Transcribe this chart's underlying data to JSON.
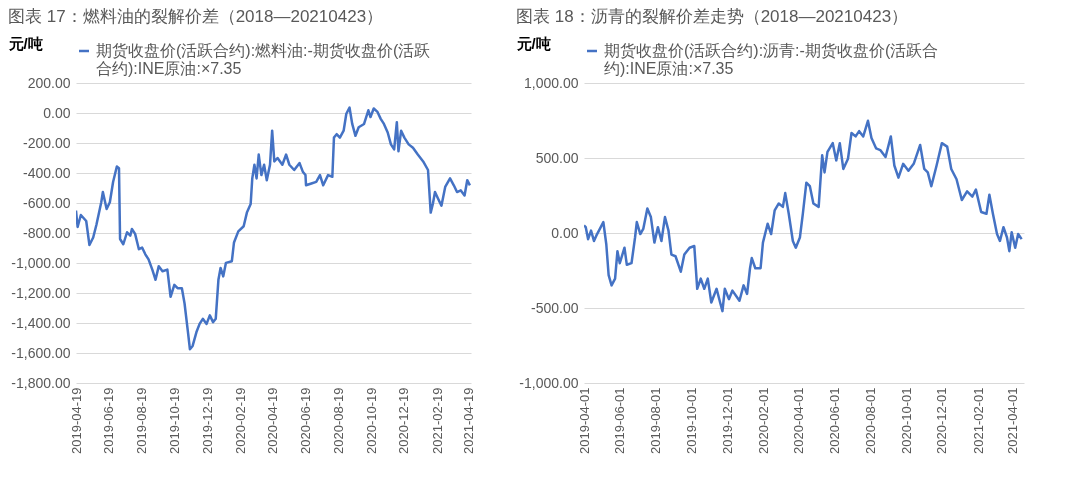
{
  "chart_data": [
    {
      "type": "line",
      "title": "图表 17：燃料油的裂解价差（2018—20210423）",
      "ylabel": "元/吨",
      "legend": "top",
      "grid": "y",
      "x": [
        "2019-04-19",
        "2019-04-22",
        "2019-04-28",
        "2019-05-08",
        "2019-05-14",
        "2019-05-21",
        "2019-05-27",
        "2019-06-05",
        "2019-06-08",
        "2019-06-15",
        "2019-06-21",
        "2019-06-27",
        "2019-07-04",
        "2019-07-08",
        "2019-07-10",
        "2019-07-16",
        "2019-07-23",
        "2019-07-29",
        "2019-08-01",
        "2019-08-07",
        "2019-08-14",
        "2019-08-20",
        "2019-08-26",
        "2019-09-01",
        "2019-09-08",
        "2019-09-14",
        "2019-09-20",
        "2019-09-27",
        "2019-10-06",
        "2019-10-12",
        "2019-10-19",
        "2019-10-25",
        "2019-11-02",
        "2019-11-07",
        "2019-11-13",
        "2019-11-17",
        "2019-11-22",
        "2019-11-29",
        "2019-12-05",
        "2019-12-11",
        "2019-12-18",
        "2019-12-24",
        "2019-12-30",
        "2020-01-04",
        "2020-01-09",
        "2020-01-13",
        "2020-01-18",
        "2020-01-23",
        "2020-02-03",
        "2020-02-07",
        "2020-02-15",
        "2020-02-25",
        "2020-03-02",
        "2020-03-09",
        "2020-03-12",
        "2020-03-16",
        "2020-03-20",
        "2020-03-24",
        "2020-03-29",
        "2020-04-03",
        "2020-04-08",
        "2020-04-14",
        "2020-04-18",
        "2020-04-22",
        "2020-04-28",
        "2020-05-07",
        "2020-05-14",
        "2020-05-20",
        "2020-05-29",
        "2020-06-08",
        "2020-06-14",
        "2020-06-19",
        "2020-06-20",
        "2020-06-30",
        "2020-07-09",
        "2020-07-16",
        "2020-07-22",
        "2020-07-31",
        "2020-08-08",
        "2020-08-11",
        "2020-08-16",
        "2020-08-22",
        "2020-08-29",
        "2020-09-03",
        "2020-09-09",
        "2020-09-14",
        "2020-09-20",
        "2020-09-26",
        "2020-10-06",
        "2020-10-14",
        "2020-10-18",
        "2020-10-24",
        "2020-10-31",
        "2020-11-06",
        "2020-11-12",
        "2020-11-19",
        "2020-11-25",
        "2020-12-01",
        "2020-12-06",
        "2020-12-09",
        "2020-12-14",
        "2020-12-20",
        "2020-12-28",
        "2021-01-05",
        "2021-01-14",
        "2021-01-24",
        "2021-02-02",
        "2021-02-07",
        "2021-02-11",
        "2021-02-15",
        "2021-02-21",
        "2021-02-27",
        "2021-03-06",
        "2021-03-15",
        "2021-03-22",
        "2021-03-28",
        "2021-04-04",
        "2021-04-11",
        "2021-04-16",
        "2021-04-21"
      ],
      "series": [
        {
          "name": "期货收盘价(活跃合约):燃料油:-期货收盘价(活跃合约):INE原油:×7.35",
          "color": "#4472c4",
          "values": [
            -650,
            -760,
            -680,
            -720,
            -880,
            -830,
            -745,
            -595,
            -527,
            -640,
            -595,
            -460,
            -357,
            -368,
            -840,
            -875,
            -795,
            -818,
            -773,
            -806,
            -908,
            -897,
            -942,
            -976,
            -1044,
            -1112,
            -1021,
            -1055,
            -1044,
            -1225,
            -1146,
            -1168,
            -1168,
            -1270,
            -1451,
            -1575,
            -1553,
            -1462,
            -1406,
            -1372,
            -1406,
            -1349,
            -1394,
            -1372,
            -1112,
            -1033,
            -1089,
            -999,
            -988,
            -863,
            -789,
            -755,
            -664,
            -607,
            -436,
            -345,
            -436,
            -277,
            -414,
            -345,
            -448,
            -345,
            -118,
            -323,
            -300,
            -345,
            -277,
            -345,
            -380,
            -334,
            -391,
            -414,
            -482,
            -470,
            -459,
            -414,
            -482,
            -414,
            -425,
            -164,
            -141,
            -164,
            -118,
            -5,
            36,
            -73,
            -152,
            -95,
            -73,
            18,
            -27,
            30,
            7,
            -39,
            -73,
            -130,
            -209,
            -243,
            -61,
            -255,
            -118,
            -164,
            -209,
            -232,
            -277,
            -323,
            -380,
            -664,
            -607,
            -527,
            -573,
            -618,
            -493,
            -436,
            -482,
            -527,
            -516,
            -550,
            -448,
            -482
          ]
        }
      ],
      "xlim": [
        "2019-04-19",
        "2021-04-23"
      ],
      "xticks": [
        "2019-04-19",
        "2019-06-19",
        "2019-08-19",
        "2019-10-19",
        "2019-12-19",
        "2020-02-19",
        "2020-04-19",
        "2020-06-19",
        "2020-08-19",
        "2020-10-19",
        "2020-12-19",
        "2021-02-19",
        "2021-04-19"
      ],
      "ylim": [
        -1800,
        200
      ],
      "yticks": [
        {
          "value": -1800,
          "label": "-1,800.00"
        },
        {
          "value": -1600,
          "label": "-1,600.00"
        },
        {
          "value": -1400,
          "label": "-1,400.00"
        },
        {
          "value": -1200,
          "label": "-1,200.00"
        },
        {
          "value": -1000,
          "label": "-1,000.00"
        },
        {
          "value": -800,
          "label": "-800.00"
        },
        {
          "value": -600,
          "label": "-600.00"
        },
        {
          "value": -400,
          "label": "-400.00"
        },
        {
          "value": -200,
          "label": "-200.00"
        },
        {
          "value": 0,
          "label": "0.00"
        },
        {
          "value": 200,
          "label": "200.00"
        }
      ]
    },
    {
      "type": "line",
      "title": "图表 18：沥青的裂解价差走势（2018—20210423）",
      "ylabel": "元/吨",
      "legend": "top",
      "grid": "y",
      "x": [
        "2019-04-01",
        "2019-04-04",
        "2019-04-08",
        "2019-04-13",
        "2019-04-18",
        "2019-04-22",
        "2019-04-28",
        "2019-05-04",
        "2019-05-09",
        "2019-05-13",
        "2019-05-18",
        "2019-05-24",
        "2019-05-28",
        "2019-06-01",
        "2019-06-09",
        "2019-06-13",
        "2019-06-21",
        "2019-06-27",
        "2019-06-30",
        "2019-07-06",
        "2019-07-11",
        "2019-07-18",
        "2019-07-24",
        "2019-07-30",
        "2019-08-05",
        "2019-08-11",
        "2019-08-17",
        "2019-08-23",
        "2019-08-28",
        "2019-09-04",
        "2019-09-13",
        "2019-09-19",
        "2019-09-28",
        "2019-10-06",
        "2019-10-11",
        "2019-10-17",
        "2019-10-23",
        "2019-10-29",
        "2019-11-04",
        "2019-11-13",
        "2019-11-19",
        "2019-11-23",
        "2019-11-27",
        "2019-12-04",
        "2019-12-10",
        "2019-12-22",
        "2019-12-29",
        "2020-01-04",
        "2020-01-09",
        "2020-01-12",
        "2020-01-18",
        "2020-01-27",
        "2020-01-31",
        "2020-02-08",
        "2020-02-14",
        "2020-02-20",
        "2020-02-27",
        "2020-03-05",
        "2020-03-09",
        "2020-03-15",
        "2020-03-22",
        "2020-03-27",
        "2020-04-03",
        "2020-04-08",
        "2020-04-14",
        "2020-04-20",
        "2020-04-26",
        "2020-05-05",
        "2020-05-11",
        "2020-05-15",
        "2020-05-20",
        "2020-05-29",
        "2020-06-04",
        "2020-06-10",
        "2020-06-16",
        "2020-06-24",
        "2020-06-30",
        "2020-07-07",
        "2020-07-13",
        "2020-07-20",
        "2020-07-28",
        "2020-08-03",
        "2020-08-11",
        "2020-08-18",
        "2020-08-27",
        "2020-09-05",
        "2020-09-11",
        "2020-09-18",
        "2020-09-26",
        "2020-10-05",
        "2020-10-14",
        "2020-10-25",
        "2020-11-01",
        "2020-11-07",
        "2020-11-13",
        "2020-11-22",
        "2020-12-01",
        "2020-12-10",
        "2020-12-17",
        "2020-12-26",
        "2021-01-04",
        "2021-01-13",
        "2021-01-22",
        "2021-01-28",
        "2021-02-06",
        "2021-02-15",
        "2021-02-20",
        "2021-02-26",
        "2021-03-05",
        "2021-03-10",
        "2021-03-16",
        "2021-03-22",
        "2021-03-26",
        "2021-03-30",
        "2021-04-05",
        "2021-04-10",
        "2021-04-16"
      ],
      "series": [
        {
          "name": "期货收盘价(活跃合约):沥青:-期货收盘价(活跃合约):INE原油:×7.35",
          "color": "#4472c4",
          "values": [
            50,
            39,
            -41,
            16,
            -53,
            -18,
            27,
            73,
            -75,
            -281,
            -349,
            -304,
            -121,
            -201,
            -98,
            -212,
            -201,
            -30,
            73,
            -7,
            27,
            163,
            106,
            -64,
            39,
            -53,
            106,
            16,
            -144,
            -155,
            -258,
            -144,
            -98,
            -87,
            -372,
            -304,
            -372,
            -304,
            -463,
            -372,
            -463,
            -521,
            -372,
            -441,
            -384,
            -452,
            -349,
            -406,
            -235,
            -167,
            -235,
            -235,
            -64,
            62,
            -7,
            151,
            197,
            174,
            266,
            128,
            -53,
            -98,
            -30,
            128,
            335,
            312,
            197,
            174,
            518,
            404,
            541,
            599,
            484,
            599,
            427,
            495,
            667,
            644,
            679,
            644,
            748,
            633,
            564,
            553,
            507,
            644,
            450,
            369,
            461,
            415,
            461,
            587,
            427,
            404,
            312,
            450,
            599,
            576,
            427,
            358,
            220,
            278,
            243,
            289,
            140,
            128,
            255,
            128,
            -7,
            -53,
            39,
            -30,
            -121,
            5,
            -98,
            -7,
            -41
          ]
        }
      ],
      "xlim": [
        "2019-04-01",
        "2021-04-20"
      ],
      "xticks": [
        "2019-04-01",
        "2019-06-01",
        "2019-08-01",
        "2019-10-01",
        "2019-12-01",
        "2020-02-01",
        "2020-04-01",
        "2020-06-01",
        "2020-08-01",
        "2020-10-01",
        "2020-12-01",
        "2021-02-01",
        "2021-04-01"
      ],
      "ylim": [
        -1000,
        1000
      ],
      "yticks": [
        {
          "value": -1000,
          "label": "-1,000.00"
        },
        {
          "value": -500,
          "label": "-500.00"
        },
        {
          "value": 0,
          "label": "0.00"
        },
        {
          "value": 500,
          "label": "500.00"
        },
        {
          "value": 1000,
          "label": "1,000.00"
        }
      ]
    }
  ]
}
